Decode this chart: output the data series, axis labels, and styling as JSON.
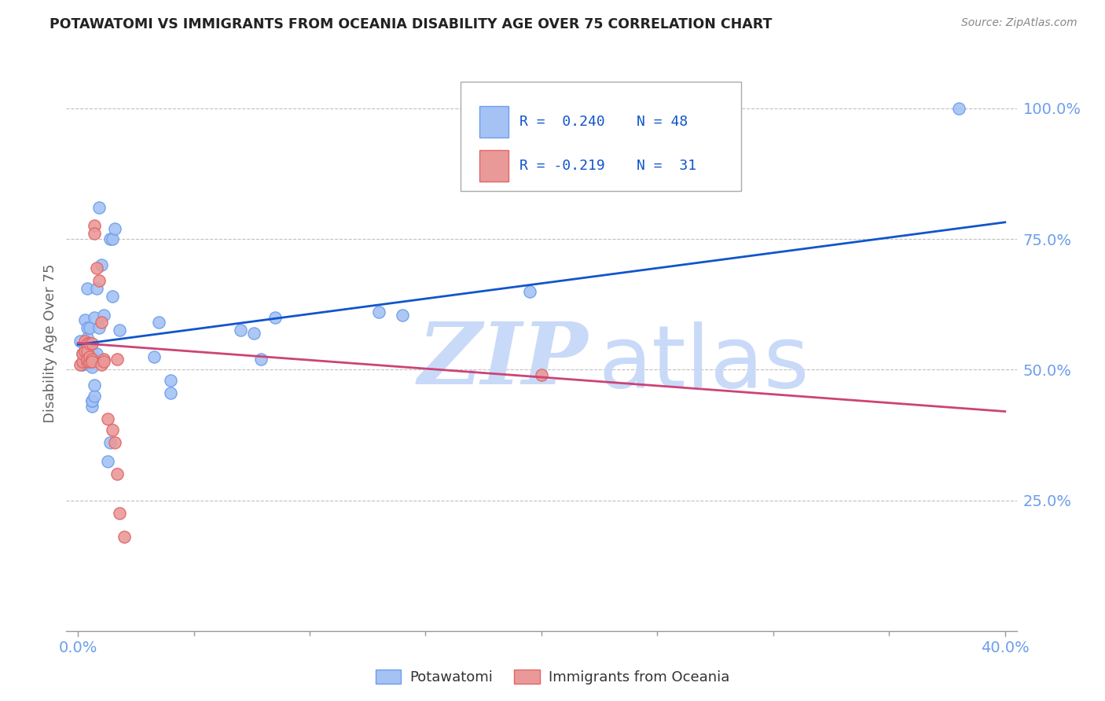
{
  "title": "POTAWATOMI VS IMMIGRANTS FROM OCEANIA DISABILITY AGE OVER 75 CORRELATION CHART",
  "source": "Source: ZipAtlas.com",
  "ylabel": "Disability Age Over 75",
  "legend_blue_r": "R =  0.240",
  "legend_blue_n": "N = 48",
  "legend_pink_r": "R = -0.219",
  "legend_pink_n": "N =  31",
  "legend_label1": "Potawatomi",
  "legend_label2": "Immigrants from Oceania",
  "blue_color": "#a4c2f4",
  "blue_edge_color": "#6d9eeb",
  "pink_color": "#ea9999",
  "pink_edge_color": "#e06666",
  "blue_line_color": "#1155cc",
  "pink_line_color": "#cc4477",
  "tick_color": "#6d9eeb",
  "grid_color": "#c0c0c0",
  "blue_scatter": [
    [
      0.001,
      0.555
    ],
    [
      0.002,
      0.53
    ],
    [
      0.002,
      0.51
    ],
    [
      0.003,
      0.545
    ],
    [
      0.003,
      0.595
    ],
    [
      0.003,
      0.525
    ],
    [
      0.004,
      0.56
    ],
    [
      0.004,
      0.655
    ],
    [
      0.004,
      0.58
    ],
    [
      0.005,
      0.53
    ],
    [
      0.005,
      0.58
    ],
    [
      0.005,
      0.535
    ],
    [
      0.005,
      0.51
    ],
    [
      0.006,
      0.43
    ],
    [
      0.006,
      0.53
    ],
    [
      0.006,
      0.53
    ],
    [
      0.006,
      0.535
    ],
    [
      0.006,
      0.505
    ],
    [
      0.006,
      0.44
    ],
    [
      0.006,
      0.44
    ],
    [
      0.007,
      0.45
    ],
    [
      0.007,
      0.47
    ],
    [
      0.007,
      0.6
    ],
    [
      0.008,
      0.655
    ],
    [
      0.008,
      0.53
    ],
    [
      0.009,
      0.81
    ],
    [
      0.009,
      0.58
    ],
    [
      0.01,
      0.7
    ],
    [
      0.011,
      0.605
    ],
    [
      0.013,
      0.325
    ],
    [
      0.014,
      0.36
    ],
    [
      0.014,
      0.75
    ],
    [
      0.015,
      0.64
    ],
    [
      0.015,
      0.75
    ],
    [
      0.016,
      0.77
    ],
    [
      0.018,
      0.575
    ],
    [
      0.033,
      0.525
    ],
    [
      0.035,
      0.59
    ],
    [
      0.04,
      0.48
    ],
    [
      0.04,
      0.455
    ],
    [
      0.07,
      0.575
    ],
    [
      0.076,
      0.57
    ],
    [
      0.079,
      0.52
    ],
    [
      0.085,
      0.6
    ],
    [
      0.13,
      0.61
    ],
    [
      0.14,
      0.605
    ],
    [
      0.195,
      0.65
    ],
    [
      0.38,
      1.0
    ]
  ],
  "pink_scatter": [
    [
      0.001,
      0.51
    ],
    [
      0.002,
      0.515
    ],
    [
      0.002,
      0.53
    ],
    [
      0.003,
      0.535
    ],
    [
      0.003,
      0.555
    ],
    [
      0.004,
      0.55
    ],
    [
      0.004,
      0.535
    ],
    [
      0.004,
      0.515
    ],
    [
      0.004,
      0.52
    ],
    [
      0.005,
      0.515
    ],
    [
      0.005,
      0.525
    ],
    [
      0.005,
      0.55
    ],
    [
      0.006,
      0.52
    ],
    [
      0.006,
      0.55
    ],
    [
      0.006,
      0.515
    ],
    [
      0.007,
      0.775
    ],
    [
      0.007,
      0.76
    ],
    [
      0.008,
      0.695
    ],
    [
      0.009,
      0.67
    ],
    [
      0.01,
      0.59
    ],
    [
      0.01,
      0.51
    ],
    [
      0.011,
      0.52
    ],
    [
      0.011,
      0.515
    ],
    [
      0.013,
      0.405
    ],
    [
      0.015,
      0.385
    ],
    [
      0.016,
      0.36
    ],
    [
      0.017,
      0.52
    ],
    [
      0.017,
      0.3
    ],
    [
      0.018,
      0.225
    ],
    [
      0.02,
      0.18
    ],
    [
      0.2,
      0.49
    ]
  ],
  "blue_line": [
    [
      0.0,
      0.548
    ],
    [
      0.4,
      0.782
    ]
  ],
  "pink_line": [
    [
      0.0,
      0.551
    ],
    [
      0.4,
      0.42
    ]
  ],
  "xlim": [
    -0.005,
    0.405
  ],
  "ylim": [
    0.0,
    1.1
  ],
  "yticks": [
    0.25,
    0.5,
    0.75,
    1.0
  ],
  "ytick_labels": [
    "25.0%",
    "50.0%",
    "75.0%",
    "100.0%"
  ],
  "xtick_left_label": "0.0%",
  "xtick_right_label": "40.0%",
  "watermark_zip": "ZIP",
  "watermark_atlas": "atlas",
  "watermark_color": "#c9daf8",
  "figsize": [
    14.06,
    8.92
  ],
  "dpi": 100
}
